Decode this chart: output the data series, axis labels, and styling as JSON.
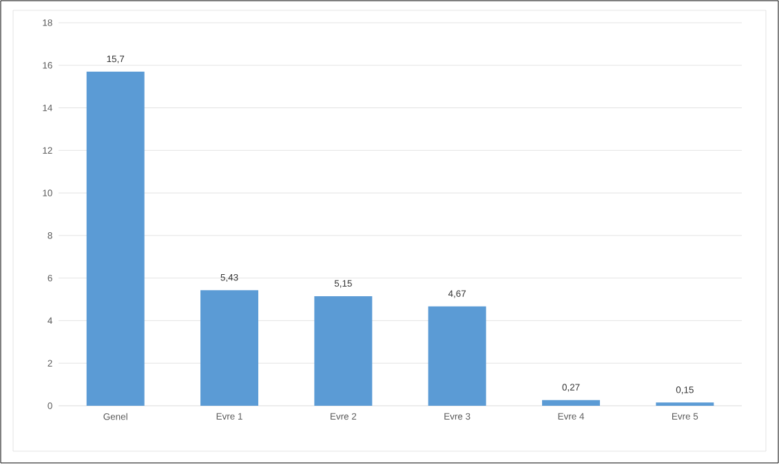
{
  "chart_data": {
    "type": "bar",
    "categories": [
      "Genel",
      "Evre 1",
      "Evre 2",
      "Evre 3",
      "Evre 4",
      "Evre 5"
    ],
    "values": [
      15.7,
      5.43,
      5.15,
      4.67,
      0.27,
      0.15
    ],
    "value_labels": [
      "15,7",
      "5,43",
      "5,15",
      "4,67",
      "0,27",
      "0,15"
    ],
    "color": "#5b9bd5",
    "ylim": [
      0,
      18
    ],
    "yticks": [
      0,
      2,
      4,
      6,
      8,
      10,
      12,
      14,
      16,
      18
    ],
    "grid": "y"
  }
}
